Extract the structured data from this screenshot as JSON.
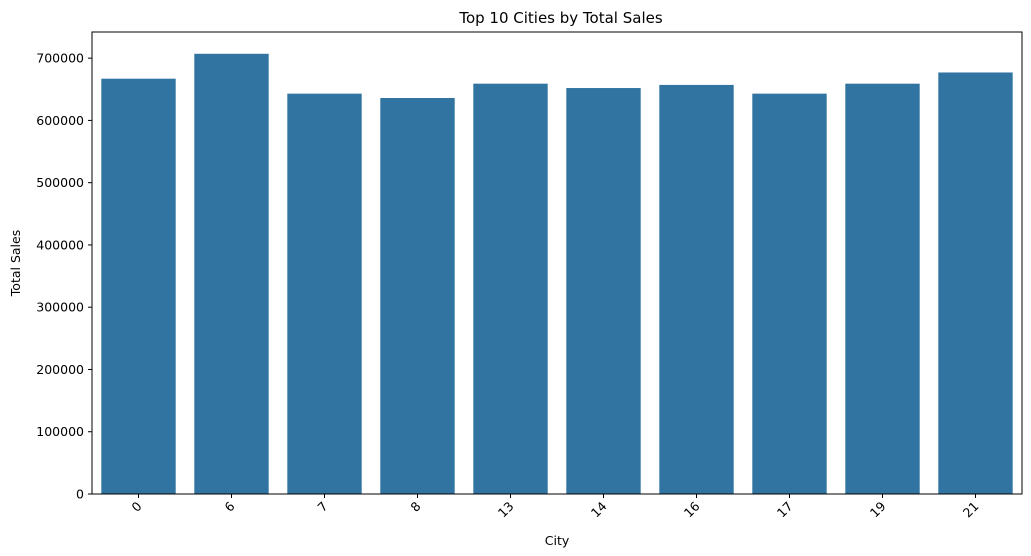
{
  "chart_data": {
    "type": "bar",
    "title": "Top 10 Cities by Total Sales",
    "xlabel": "City",
    "ylabel": "Total Sales",
    "categories": [
      "0",
      "6",
      "7",
      "8",
      "13",
      "14",
      "16",
      "17",
      "19",
      "21"
    ],
    "values": [
      667000,
      707000,
      643000,
      636000,
      659000,
      652000,
      657000,
      643000,
      659000,
      677000
    ],
    "ylim": [
      0,
      742000
    ],
    "yticks": [
      0,
      100000,
      200000,
      300000,
      400000,
      500000,
      600000,
      700000
    ],
    "ytick_labels": [
      "0",
      "100000",
      "200000",
      "300000",
      "400000",
      "500000",
      "600000",
      "700000"
    ],
    "xtick_rotation_deg": 45,
    "grid": false,
    "legend": "none",
    "bar_color": "#3274a1"
  }
}
